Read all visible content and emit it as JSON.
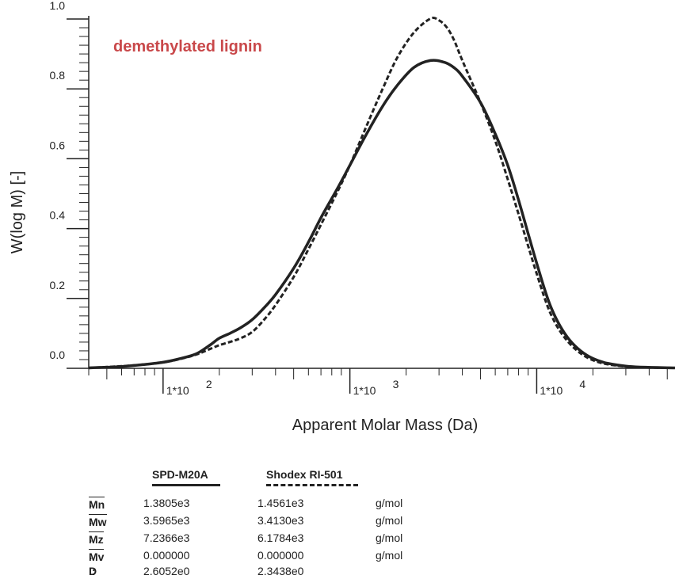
{
  "chart_data": {
    "type": "line",
    "annotation": "demethylated lignin",
    "annotation_color": "#c9484a",
    "xlabel": "Apparent Molar Mass (Da)",
    "ylabel": "W(log M) [-]",
    "x_scale": "log",
    "xlim": [
      40,
      55000
    ],
    "ylim": [
      0,
      1.0
    ],
    "y_ticks": [
      "0.0",
      "0.2",
      "0.4",
      "0.6",
      "0.8",
      "1.0"
    ],
    "x_tick_labels": [
      {
        "base": "1*10",
        "exp": "2",
        "value": 100
      },
      {
        "base": "1*10",
        "exp": "3",
        "value": 1000
      },
      {
        "base": "1*10",
        "exp": "4",
        "value": 10000
      }
    ],
    "series": [
      {
        "name": "SPD-M20A",
        "style": "solid",
        "x": [
          40,
          60,
          80,
          100,
          120,
          150,
          180,
          200,
          230,
          260,
          300,
          350,
          400,
          500,
          600,
          700,
          850,
          1000,
          1200,
          1500,
          1800,
          2200,
          2700,
          3200,
          3600,
          4000,
          5000,
          6000,
          7000,
          8000,
          10000,
          12000,
          15000,
          20000,
          30000,
          55000
        ],
        "y": [
          0.0,
          0.004,
          0.01,
          0.016,
          0.025,
          0.04,
          0.067,
          0.085,
          0.1,
          0.115,
          0.138,
          0.174,
          0.21,
          0.285,
          0.36,
          0.43,
          0.51,
          0.58,
          0.66,
          0.75,
          0.81,
          0.86,
          0.88,
          0.875,
          0.86,
          0.835,
          0.76,
          0.67,
          0.58,
          0.48,
          0.3,
          0.17,
          0.08,
          0.027,
          0.005,
          0.0
        ]
      },
      {
        "name": "Shodex RI-501",
        "style": "dashed",
        "x": [
          40,
          60,
          80,
          100,
          120,
          150,
          180,
          200,
          230,
          260,
          300,
          350,
          400,
          500,
          600,
          700,
          850,
          1000,
          1200,
          1500,
          1800,
          2200,
          2700,
          3000,
          3300,
          3600,
          4000,
          5000,
          6000,
          7000,
          8000,
          10000,
          12000,
          15000,
          20000,
          30000,
          55000
        ],
        "y": [
          0.0,
          0.005,
          0.01,
          0.016,
          0.024,
          0.038,
          0.055,
          0.065,
          0.075,
          0.085,
          0.103,
          0.14,
          0.18,
          0.26,
          0.34,
          0.41,
          0.5,
          0.58,
          0.68,
          0.8,
          0.89,
          0.96,
          1.0,
          0.995,
          0.975,
          0.94,
          0.88,
          0.76,
          0.65,
          0.54,
          0.44,
          0.27,
          0.15,
          0.07,
          0.022,
          0.004,
          0.0
        ]
      }
    ]
  },
  "stats": {
    "columns": [
      {
        "label": "SPD-M20A",
        "style": "solid"
      },
      {
        "label": "Shodex RI-501",
        "style": "dashed"
      }
    ],
    "rows": [
      {
        "label": "Mn",
        "v1": "1.3805e3",
        "v2": "1.4561e3",
        "unit": "g/mol"
      },
      {
        "label": "Mw",
        "v1": "3.5965e3",
        "v2": "3.4130e3",
        "unit": "g/mol"
      },
      {
        "label": "Mz",
        "v1": "7.2366e3",
        "v2": "6.1784e3",
        "unit": "g/mol"
      },
      {
        "label": "Mv",
        "v1": "0.000000",
        "v2": "0.000000",
        "unit": "g/mol"
      },
      {
        "label": "D",
        "v1": "2.6052e0",
        "v2": "2.3438e0",
        "unit": ""
      }
    ]
  }
}
